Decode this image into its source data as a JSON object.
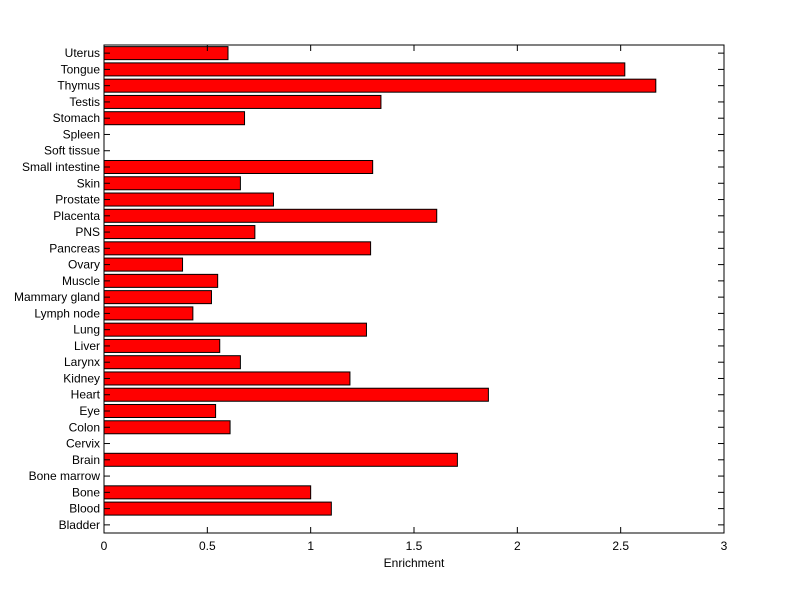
{
  "chart_data": {
    "type": "bar",
    "orientation": "horizontal",
    "categories": [
      "Bladder",
      "Blood",
      "Bone",
      "Bone marrow",
      "Brain",
      "Cervix",
      "Colon",
      "Eye",
      "Heart",
      "Kidney",
      "Larynx",
      "Liver",
      "Lung",
      "Lymph node",
      "Mammary gland",
      "Muscle",
      "Ovary",
      "Pancreas",
      "PNS",
      "Placenta",
      "Prostate",
      "Skin",
      "Small intestine",
      "Soft tissue",
      "Spleen",
      "Stomach",
      "Testis",
      "Thymus",
      "Tongue",
      "Uterus"
    ],
    "values": [
      0,
      1.1,
      1.0,
      0,
      1.71,
      0,
      0.61,
      0.54,
      1.86,
      1.19,
      0.66,
      0.56,
      1.27,
      0.43,
      0.52,
      0.55,
      0.38,
      1.29,
      0.73,
      1.61,
      0.82,
      0.66,
      1.3,
      0,
      0,
      0.68,
      1.34,
      2.67,
      2.52,
      0.6
    ],
    "xlabel": "Enrichment",
    "ylabel": "",
    "title": "",
    "xlim": [
      0,
      3
    ],
    "xticks": [
      "0",
      "0.5",
      "1",
      "1.5",
      "2",
      "2.5",
      "3"
    ],
    "bar_color": "#ff0000",
    "grid": false
  }
}
